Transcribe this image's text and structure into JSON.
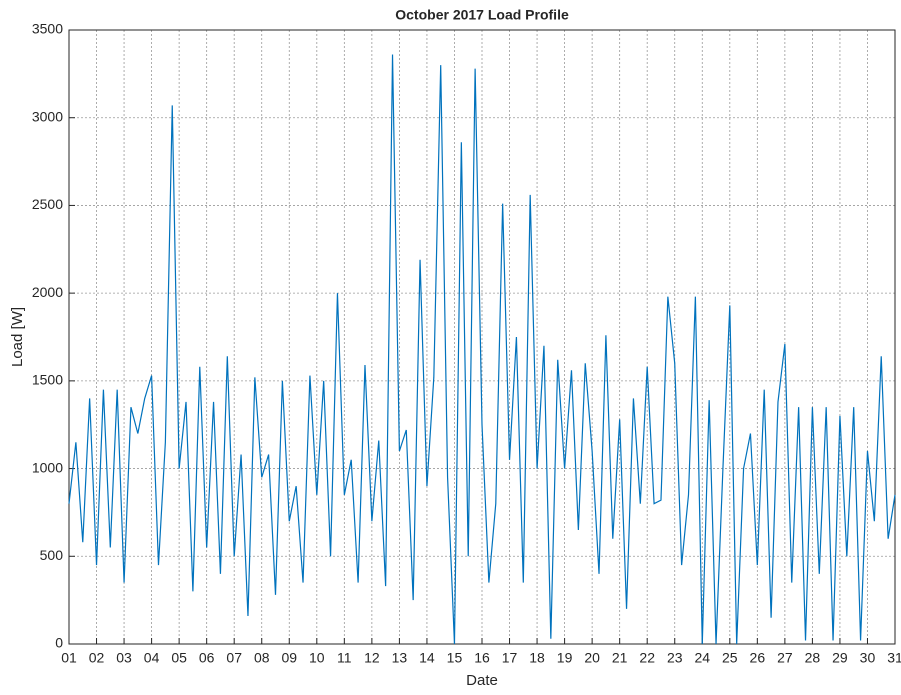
{
  "chart_data": {
    "type": "line",
    "title": "October 2017 Load Profile",
    "x_label": "Date",
    "y_label": "Load [W]",
    "color": "#0072bd",
    "grid": true,
    "x": [
      1,
      1.25,
      1.5,
      1.75,
      2,
      2.25,
      2.5,
      2.75,
      3,
      3.25,
      3.5,
      3.75,
      4,
      4.25,
      4.5,
      4.75,
      5,
      5.25,
      5.5,
      5.75,
      6,
      6.25,
      6.5,
      6.75,
      7,
      7.25,
      7.5,
      7.75,
      8,
      8.25,
      8.5,
      8.75,
      9,
      9.25,
      9.5,
      9.75,
      10,
      10.25,
      10.5,
      10.75,
      11,
      11.25,
      11.5,
      11.75,
      12,
      12.25,
      12.5,
      12.75,
      13,
      13.25,
      13.5,
      13.75,
      14,
      14.25,
      14.5,
      14.75,
      15,
      15.25,
      15.5,
      15.75,
      16,
      16.25,
      16.5,
      16.75,
      17,
      17.25,
      17.5,
      17.75,
      18,
      18.25,
      18.5,
      18.75,
      19,
      19.25,
      19.5,
      19.75,
      20,
      20.25,
      20.5,
      20.75,
      21,
      21.25,
      21.5,
      21.75,
      22,
      22.25,
      22.5,
      22.75,
      23,
      23.25,
      23.5,
      23.75,
      24,
      24.25,
      24.5,
      24.75,
      25,
      25.25,
      25.5,
      25.75,
      26,
      26.25,
      26.5,
      26.75,
      27,
      27.25,
      27.5,
      27.75,
      28,
      28.25,
      28.5,
      28.75,
      29,
      29.25,
      29.5,
      29.75,
      30,
      30.25,
      30.5,
      30.75,
      31
    ],
    "values": [
      800,
      1150,
      580,
      1400,
      450,
      1450,
      550,
      1450,
      350,
      1350,
      1200,
      1400,
      1530,
      450,
      1150,
      3070,
      1000,
      1380,
      300,
      1580,
      550,
      1380,
      400,
      1640,
      500,
      1080,
      160,
      1520,
      950,
      1080,
      280,
      1500,
      700,
      900,
      350,
      1530,
      850,
      1500,
      500,
      2000,
      850,
      1050,
      350,
      1590,
      700,
      1160,
      330,
      3360,
      1100,
      1220,
      250,
      2190,
      900,
      1520,
      3300,
      950,
      0,
      2860,
      500,
      3280,
      1250,
      350,
      800,
      2510,
      1050,
      1750,
      350,
      2560,
      1000,
      1700,
      30,
      1620,
      1000,
      1560,
      650,
      1600,
      1100,
      400,
      1760,
      600,
      1280,
      200,
      1400,
      800,
      1580,
      800,
      820,
      1980,
      1600,
      450,
      850,
      1980,
      0,
      1390,
      0,
      1000,
      1930,
      0,
      1000,
      1200,
      450,
      1450,
      150,
      1380,
      1710,
      350,
      1350,
      20,
      1350,
      400,
      1350,
      20,
      1300,
      500,
      1350,
      20,
      1100,
      700,
      1640,
      600,
      850
    ],
    "xlim": [
      1,
      31
    ],
    "xticks": [
      {
        "value": 1,
        "label": "01"
      },
      {
        "value": 2,
        "label": "02"
      },
      {
        "value": 3,
        "label": "03"
      },
      {
        "value": 4,
        "label": "04"
      },
      {
        "value": 5,
        "label": "05"
      },
      {
        "value": 6,
        "label": "06"
      },
      {
        "value": 7,
        "label": "07"
      },
      {
        "value": 8,
        "label": "08"
      },
      {
        "value": 9,
        "label": "09"
      },
      10,
      11,
      12,
      13,
      14,
      15,
      16,
      17,
      18,
      19,
      20,
      21,
      22,
      23,
      24,
      25,
      26,
      27,
      28,
      29,
      30,
      31
    ],
    "ylim": [
      0,
      3500
    ],
    "yticks": [
      0,
      500,
      1000,
      1500,
      2000,
      2500,
      3000,
      3500
    ]
  }
}
